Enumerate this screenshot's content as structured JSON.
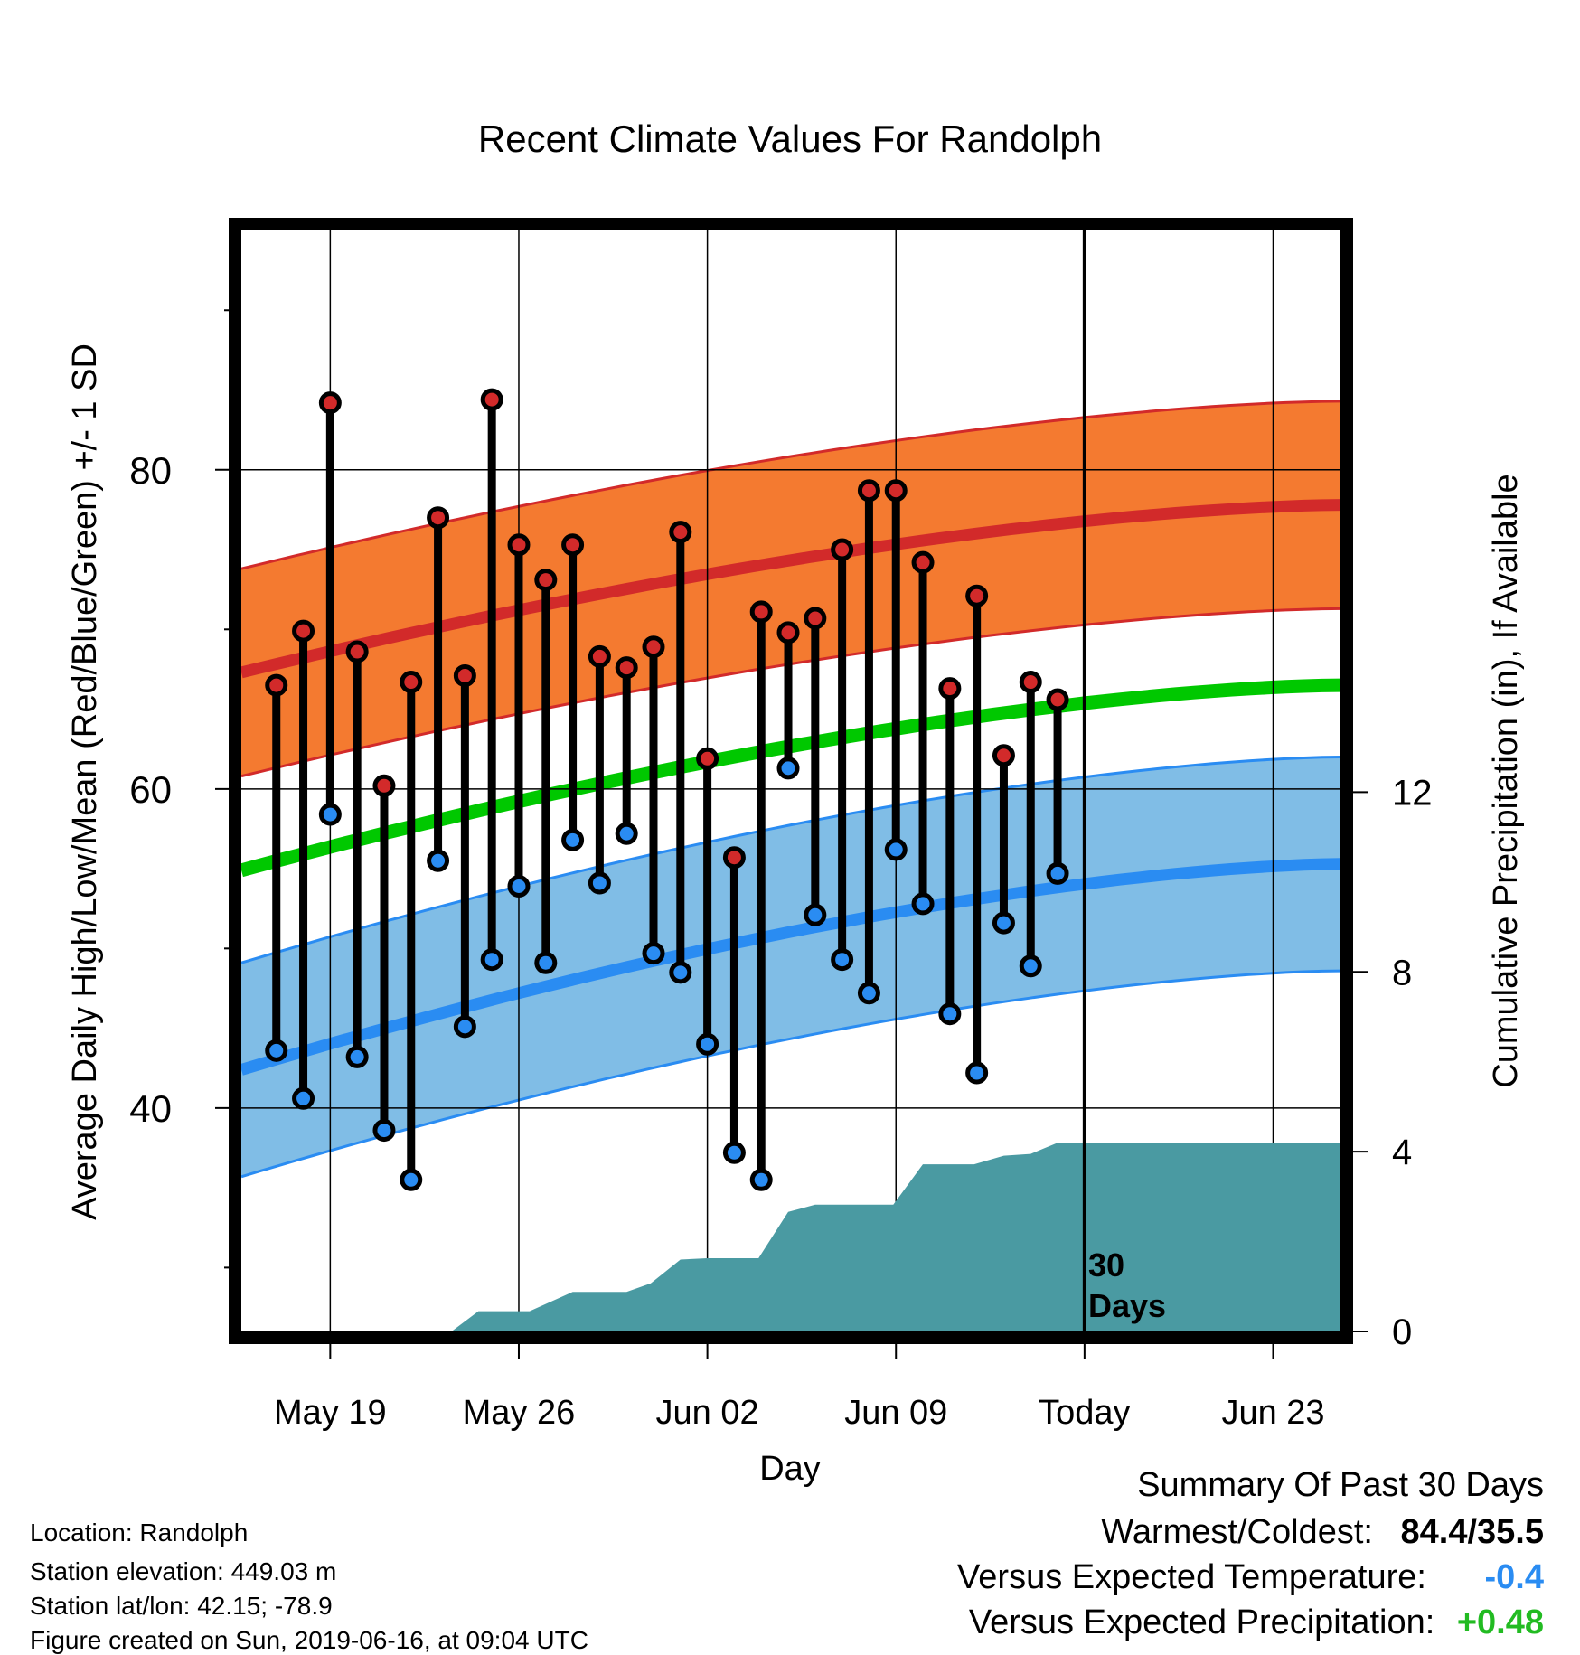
{
  "title": "Recent Climate Values For Randolph",
  "xlabel": "Day",
  "ylabel_left": "Average Daily High/Low/Mean (Red/Blue/Green) +/- 1 SD",
  "ylabel_right": "Cumulative Precipitation (in), If Available",
  "today_label_line1": "30",
  "today_label_line2": "Days",
  "info": {
    "location": "Location: Randolph",
    "elevation": "Station elevation: 449.03 m",
    "latlon": "Station lat/lon: 42.15; -78.9",
    "created": "Figure created on Sun, 2019-06-16, at 09:04 UTC"
  },
  "summary": {
    "heading": "Summary Of Past 30 Days",
    "warm_cold_label": "Warmest/Coldest:",
    "warm_cold_value": "84.4/35.5",
    "temp_label": "Versus Expected Temperature:",
    "temp_value": "-0.4",
    "precip_label": "Versus Expected Precipitation:",
    "precip_value": "+0.48"
  },
  "colors": {
    "high_band": "#f47a30",
    "high_line": "#d22a2a",
    "low_band": "#80bde6",
    "low_line": "#2a8cf2",
    "mean_line": "#00c800",
    "precip_fill": "#4a9aa2",
    "temp_value": "#2a8cf2",
    "precip_value": "#22bb22"
  },
  "chart_data": {
    "type": "line",
    "x_unit": "days relative to Jun 16 (Today)",
    "x_ticks": [
      {
        "x": -28,
        "label": "May 19"
      },
      {
        "x": -21,
        "label": "May 26"
      },
      {
        "x": -14,
        "label": "Jun 02"
      },
      {
        "x": -7,
        "label": "Jun 09"
      },
      {
        "x": 0,
        "label": "Today"
      },
      {
        "x": 7,
        "label": "Jun 23"
      }
    ],
    "xlim": [
      -31.3,
      9.5
    ],
    "y_left": {
      "ylim": [
        26,
        95
      ],
      "ticks": [
        40,
        60,
        80
      ]
    },
    "y_right": {
      "ylim": [
        0,
        24.5
      ],
      "ticks": [
        0,
        4,
        8,
        12
      ]
    },
    "daily": [
      {
        "x": -30,
        "high": 66.5,
        "low": 43.6
      },
      {
        "x": -29,
        "high": 69.9,
        "low": 40.6
      },
      {
        "x": -28,
        "high": 84.2,
        "low": 58.4
      },
      {
        "x": -27,
        "high": 68.6,
        "low": 43.2
      },
      {
        "x": -26,
        "high": 60.2,
        "low": 38.6
      },
      {
        "x": -25,
        "high": 66.7,
        "low": 35.5
      },
      {
        "x": -24,
        "high": 77.0,
        "low": 55.5
      },
      {
        "x": -23,
        "high": 67.1,
        "low": 45.1
      },
      {
        "x": -22,
        "high": 84.4,
        "low": 49.3
      },
      {
        "x": -21,
        "high": 75.3,
        "low": 53.9
      },
      {
        "x": -20,
        "high": 73.1,
        "low": 49.1
      },
      {
        "x": -19,
        "high": 75.3,
        "low": 56.8
      },
      {
        "x": -18,
        "high": 68.3,
        "low": 54.1
      },
      {
        "x": -17,
        "high": 67.6,
        "low": 57.2
      },
      {
        "x": -16,
        "high": 68.9,
        "low": 49.7
      },
      {
        "x": -15,
        "high": 76.1,
        "low": 48.5
      },
      {
        "x": -14,
        "high": 61.9,
        "low": 44.0
      },
      {
        "x": -13,
        "high": 55.7,
        "low": 37.2
      },
      {
        "x": -12,
        "high": 71.1,
        "low": 35.5
      },
      {
        "x": -11,
        "high": 69.8,
        "low": 61.3
      },
      {
        "x": -10,
        "high": 70.7,
        "low": 52.1
      },
      {
        "x": -9,
        "high": 75.0,
        "low": 49.3
      },
      {
        "x": -8,
        "high": 78.7,
        "low": 47.2
      },
      {
        "x": -7,
        "high": 78.7,
        "low": 56.2
      },
      {
        "x": -6,
        "high": 74.2,
        "low": 52.8
      },
      {
        "x": -5,
        "high": 66.3,
        "low": 45.9
      },
      {
        "x": -4,
        "high": 72.1,
        "low": 42.2
      },
      {
        "x": -3,
        "high": 62.1,
        "low": 51.6
      },
      {
        "x": -2,
        "high": 66.7,
        "low": 48.9
      },
      {
        "x": -1,
        "high": 65.6,
        "low": 54.7
      }
    ],
    "normal_x": [
      -31.3,
      9.5
    ],
    "normal_high": [
      67.3,
      77.8
    ],
    "normal_high_sd": 6.5,
    "normal_low": [
      42.4,
      55.3
    ],
    "normal_low_sd": 6.7,
    "normal_mean": [
      54.9,
      66.5
    ],
    "precip_cumulative": [
      {
        "x": -31.3,
        "y": 0
      },
      {
        "x": -23.5,
        "y": 0
      },
      {
        "x": -22.5,
        "y": 0.45
      },
      {
        "x": -20.6,
        "y": 0.45
      },
      {
        "x": -19.0,
        "y": 0.88
      },
      {
        "x": -17.0,
        "y": 0.88
      },
      {
        "x": -16.1,
        "y": 1.07
      },
      {
        "x": -15.0,
        "y": 1.6
      },
      {
        "x": -14.0,
        "y": 1.63
      },
      {
        "x": -12.1,
        "y": 1.63
      },
      {
        "x": -11.0,
        "y": 2.66
      },
      {
        "x": -10.0,
        "y": 2.82
      },
      {
        "x": -7.1,
        "y": 2.82
      },
      {
        "x": -6.0,
        "y": 3.72
      },
      {
        "x": -4.1,
        "y": 3.72
      },
      {
        "x": -3.0,
        "y": 3.91
      },
      {
        "x": -2.0,
        "y": 3.95
      },
      {
        "x": -1.0,
        "y": 4.2
      },
      {
        "x": 9.5,
        "y": 4.2
      }
    ]
  }
}
